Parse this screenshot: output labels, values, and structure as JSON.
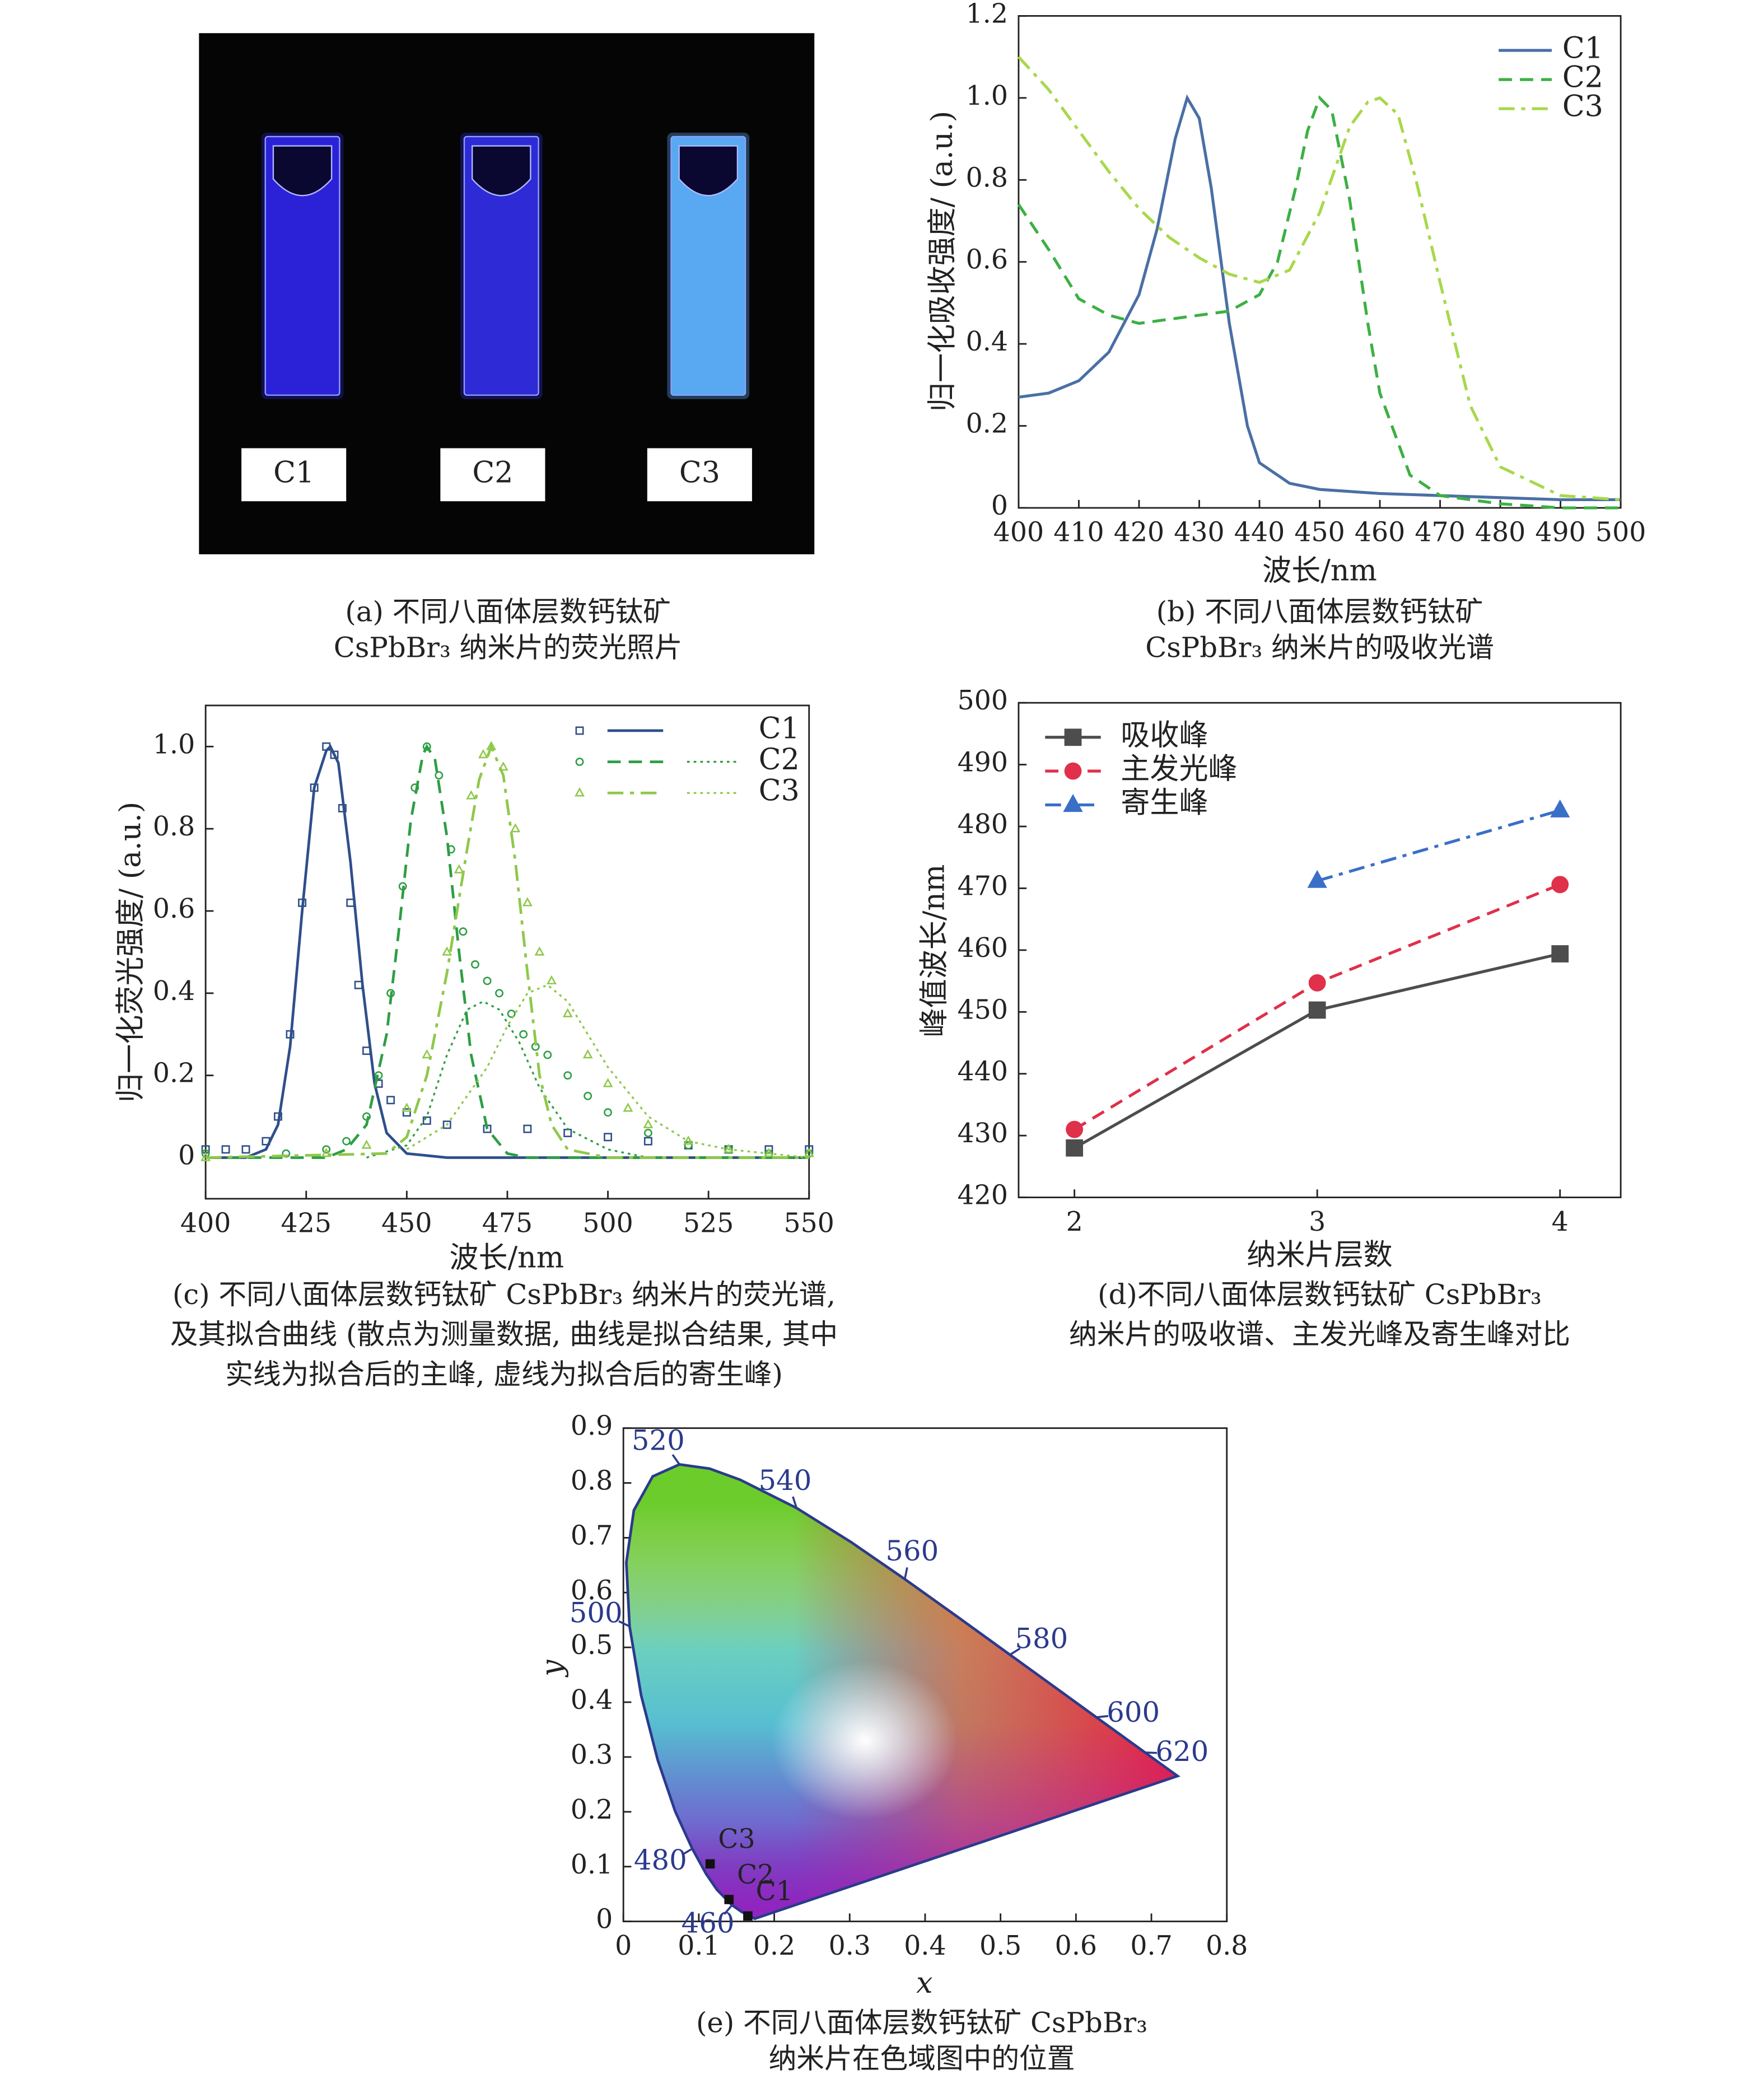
{
  "chart_data": [
    {
      "type": "photo",
      "labels": [
        "C1",
        "C2",
        "C3"
      ],
      "colors": [
        "#2b22d8",
        "#2d2ad6",
        "#58a8f2"
      ],
      "caption": [
        "(a) 不同八面体层数钙钛矿",
        "CsPbBr₃ 纳米片的荧光照片"
      ]
    },
    {
      "type": "line",
      "xlabel": "波长/nm",
      "ylabel": "归一化吸收强度/ (a.u.)",
      "xlim": [
        400,
        500
      ],
      "ylim": [
        0,
        1.2
      ],
      "xticks": [
        400,
        410,
        420,
        430,
        440,
        450,
        460,
        470,
        480,
        490,
        500
      ],
      "yticks": [
        0,
        0.2,
        0.4,
        0.6,
        0.8,
        {
          "value": 1,
          "label": "1.0"
        },
        1.2
      ],
      "legend": "upper right",
      "series": [
        {
          "name": "C1",
          "color": "#4a6fa5",
          "dash": "solid",
          "x": [
            400,
            405,
            410,
            415,
            420,
            423,
            426,
            428,
            430,
            432,
            435,
            438,
            440,
            445,
            450,
            460,
            470,
            480,
            490,
            500
          ],
          "values": [
            0.27,
            0.28,
            0.31,
            0.38,
            0.52,
            0.68,
            0.9,
            1.0,
            0.95,
            0.78,
            0.45,
            0.2,
            0.11,
            0.06,
            0.045,
            0.035,
            0.03,
            0.025,
            0.02,
            0.02
          ]
        },
        {
          "name": "C2",
          "color": "#3cb043",
          "dash": "dashed",
          "x": [
            400,
            405,
            410,
            415,
            420,
            425,
            430,
            435,
            440,
            443,
            446,
            448,
            450,
            452,
            455,
            458,
            460,
            465,
            470,
            480,
            490,
            500
          ],
          "values": [
            0.74,
            0.63,
            0.51,
            0.47,
            0.45,
            0.46,
            0.47,
            0.48,
            0.52,
            0.6,
            0.78,
            0.92,
            1.0,
            0.97,
            0.75,
            0.45,
            0.28,
            0.08,
            0.03,
            0.01,
            0,
            0
          ]
        },
        {
          "name": "C3",
          "color": "#a8d84a",
          "dash": "dashdot",
          "x": [
            400,
            405,
            410,
            415,
            420,
            425,
            430,
            435,
            440,
            445,
            450,
            455,
            458,
            460,
            463,
            466,
            470,
            475,
            480,
            490,
            500
          ],
          "values": [
            1.1,
            1.02,
            0.92,
            0.82,
            0.73,
            0.66,
            0.61,
            0.57,
            0.55,
            0.58,
            0.72,
            0.93,
            0.99,
            1.0,
            0.96,
            0.8,
            0.55,
            0.25,
            0.1,
            0.03,
            0.02
          ]
        }
      ],
      "caption": [
        "(b) 不同八面体层数钙钛矿",
        "CsPbBr₃ 纳米片的吸收光谱"
      ]
    },
    {
      "type": "scatter",
      "xlabel": "波长/nm",
      "ylabel": "归一化荧光强度/ (a.u.)",
      "xlim": [
        400,
        550
      ],
      "ylim": [
        -0.1,
        1.1
      ],
      "xticks": [
        400,
        425,
        450,
        475,
        500,
        525,
        550
      ],
      "yticks": [
        0,
        0.2,
        0.4,
        0.6,
        0.8,
        {
          "value": 1,
          "label": "1.0"
        }
      ],
      "legend": "upper right",
      "series": [
        {
          "name": "C1",
          "color": "#2f4f8a",
          "marker": "square",
          "scatter": {
            "x": [
              400,
              405,
              410,
              415,
              418,
              421,
              424,
              427,
              430,
              432,
              434,
              436,
              438,
              440,
              443,
              446,
              450,
              455,
              460,
              470,
              480,
              490,
              500,
              510,
              520,
              530,
              540,
              550
            ],
            "values": [
              0.02,
              0.02,
              0.02,
              0.04,
              0.1,
              0.3,
              0.62,
              0.9,
              1.0,
              0.98,
              0.85,
              0.62,
              0.42,
              0.26,
              0.18,
              0.14,
              0.11,
              0.09,
              0.08,
              0.07,
              0.07,
              0.06,
              0.05,
              0.04,
              0.03,
              0.02,
              0.02,
              0.02
            ]
          },
          "fit": {
            "dash": "solid",
            "x": [
              400,
              410,
              415,
              418,
              421,
              424,
              427,
              430,
              431,
              433,
              436,
              439,
              442,
              445,
              450,
              460,
              550
            ],
            "values": [
              0,
              0,
              0.02,
              0.08,
              0.27,
              0.6,
              0.9,
              0.99,
              1.0,
              0.96,
              0.72,
              0.42,
              0.18,
              0.06,
              0.01,
              0,
              0
            ]
          }
        },
        {
          "name": "C2",
          "color": "#2e9e45",
          "marker": "circle",
          "scatter": {
            "x": [
              400,
              420,
              430,
              435,
              440,
              443,
              446,
              449,
              452,
              455,
              458,
              461,
              464,
              467,
              470,
              473,
              476,
              479,
              482,
              485,
              490,
              495,
              500,
              510,
              520,
              530,
              540,
              550
            ],
            "values": [
              0.01,
              0.01,
              0.02,
              0.04,
              0.1,
              0.2,
              0.4,
              0.66,
              0.9,
              1.0,
              0.93,
              0.75,
              0.55,
              0.47,
              0.43,
              0.4,
              0.35,
              0.3,
              0.27,
              0.25,
              0.2,
              0.15,
              0.11,
              0.06,
              0.03,
              0.02,
              0.01,
              0.01
            ]
          },
          "fit": {
            "dash": "dashed",
            "x": [
              400,
              430,
              435,
              440,
              445,
              448,
              451,
              454,
              455,
              457,
              460,
              463,
              466,
              470,
              475,
              480,
              550
            ],
            "values": [
              0,
              0,
              0.02,
              0.08,
              0.3,
              0.55,
              0.82,
              0.98,
              1.0,
              0.97,
              0.78,
              0.5,
              0.25,
              0.07,
              0.01,
              0,
              0
            ]
          },
          "parasitic": {
            "dash": "dotted",
            "x": [
              440,
              450,
              455,
              460,
              465,
              469,
              473,
              478,
              483,
              490,
              500,
              510
            ],
            "values": [
              0,
              0.03,
              0.1,
              0.25,
              0.36,
              0.38,
              0.36,
              0.28,
              0.17,
              0.07,
              0.02,
              0
            ]
          }
        },
        {
          "name": "C3",
          "color": "#8fc84a",
          "marker": "triangle",
          "scatter": {
            "x": [
              400,
              430,
              440,
              450,
              455,
              460,
              463,
              466,
              469,
              471,
              474,
              477,
              480,
              483,
              486,
              490,
              495,
              500,
              505,
              510,
              520,
              530,
              540,
              550
            ],
            "values": [
              0,
              0.01,
              0.03,
              0.12,
              0.25,
              0.5,
              0.7,
              0.88,
              0.98,
              1.0,
              0.95,
              0.8,
              0.62,
              0.5,
              0.43,
              0.35,
              0.25,
              0.18,
              0.12,
              0.08,
              0.04,
              0.02,
              0.01,
              0.01
            ]
          },
          "fit": {
            "dash": "dashdot",
            "x": [
              400,
              445,
              450,
              455,
              460,
              465,
              468,
              471,
              474,
              477,
              480,
              483,
              486,
              490,
              500,
              550
            ],
            "values": [
              0,
              0.01,
              0.05,
              0.2,
              0.45,
              0.75,
              0.92,
              1.0,
              0.93,
              0.72,
              0.45,
              0.2,
              0.08,
              0.02,
              0,
              0
            ]
          },
          "parasitic": {
            "dash": "dotted",
            "x": [
              450,
              460,
              470,
              475,
              480,
              485,
              490,
              495,
              500,
              510,
              520,
              530,
              550
            ],
            "values": [
              0.02,
              0.08,
              0.22,
              0.32,
              0.4,
              0.42,
              0.38,
              0.3,
              0.22,
              0.1,
              0.04,
              0.02,
              0
            ]
          }
        }
      ],
      "caption": [
        "(c) 不同八面体层数钙钛矿 CsPbBr₃ 纳米片的荧光谱,",
        "及其拟合曲线 (散点为测量数据, 曲线是拟合结果, 其中",
        "实线为拟合后的主峰, 虚线为拟合后的寄生峰)"
      ]
    },
    {
      "type": "line",
      "xlabel": "纳米片层数",
      "ylabel": "峰值波长/nm",
      "xlim": [
        1.77,
        4.25
      ],
      "ylim": [
        420,
        500
      ],
      "xticks": [
        2,
        3,
        4
      ],
      "yticks": [
        420,
        430,
        440,
        450,
        460,
        470,
        480,
        490,
        500
      ],
      "legend": "upper left",
      "series": [
        {
          "name": "吸收峰",
          "color": "#4d4d4d",
          "dash": "solid",
          "marker": "square",
          "x": [
            2,
            3,
            4
          ],
          "values": [
            428,
            450.3,
            459.4
          ]
        },
        {
          "name": "主发光峰",
          "color": "#e0304a",
          "dash": "dashed",
          "marker": "circle",
          "x": [
            2,
            3,
            4
          ],
          "values": [
            431,
            454.7,
            470.6
          ]
        },
        {
          "name": "寄生峰",
          "color": "#3a6fc8",
          "dash": "dashdot",
          "marker": "triangle",
          "x": [
            3,
            4
          ],
          "values": [
            471.2,
            482.6
          ]
        }
      ],
      "caption": [
        "(d)不同八面体层数钙钛矿 CsPbBr₃",
        "纳米片的吸收谱、主发光峰及寄生峰对比"
      ]
    },
    {
      "type": "chromaticity",
      "xlabel": "x",
      "ylabel": "y",
      "xlim": [
        0,
        0.8
      ],
      "ylim": [
        0,
        0.9
      ],
      "xticks": [
        0,
        0.1,
        0.2,
        0.3,
        0.4,
        0.5,
        0.6,
        0.7,
        0.8
      ],
      "yticks": [
        0,
        0.1,
        0.2,
        0.3,
        0.4,
        0.5,
        0.6,
        0.7,
        0.8,
        0.9
      ],
      "locus": {
        "wavelengths": [
          380,
          450,
          460,
          470,
          475,
          480,
          485,
          490,
          495,
          500,
          505,
          510,
          515,
          520,
          525,
          530,
          540,
          550,
          560,
          570,
          580,
          590,
          600,
          620,
          700
        ],
        "x": [
          0.1741,
          0.1566,
          0.144,
          0.1241,
          0.1096,
          0.0913,
          0.0687,
          0.0454,
          0.0235,
          0.0082,
          0.0039,
          0.0139,
          0.0389,
          0.0743,
          0.1142,
          0.1547,
          0.2296,
          0.3016,
          0.3731,
          0.4441,
          0.5125,
          0.5752,
          0.627,
          0.6915,
          0.7347
        ],
        "y": [
          0.005,
          0.0177,
          0.0297,
          0.0578,
          0.0868,
          0.1327,
          0.2007,
          0.295,
          0.4127,
          0.5384,
          0.6548,
          0.7502,
          0.812,
          0.8338,
          0.8262,
          0.8059,
          0.7543,
          0.6923,
          0.6245,
          0.5547,
          0.4866,
          0.4242,
          0.3725,
          0.3083,
          0.2653
        ]
      },
      "wavelength_labels": [
        460,
        480,
        500,
        520,
        540,
        560,
        580,
        600,
        620
      ],
      "label_color": "#2b3a8c",
      "points": [
        {
          "name": "C1",
          "x": 0.165,
          "y": 0.01
        },
        {
          "name": "C2",
          "x": 0.14,
          "y": 0.04
        },
        {
          "name": "C3",
          "x": 0.115,
          "y": 0.105
        }
      ],
      "caption": [
        "(e) 不同八面体层数钙钛矿 CsPbBr₃",
        "纳米片在色域图中的位置"
      ]
    }
  ]
}
